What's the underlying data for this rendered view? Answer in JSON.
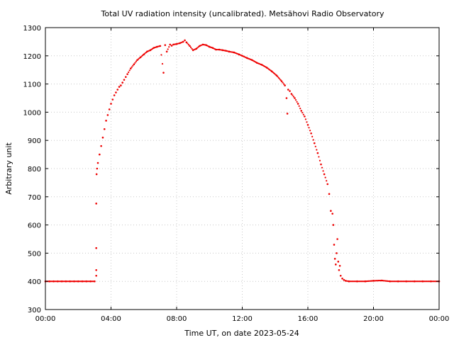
{
  "chart_data": {
    "type": "scatter",
    "title": "Total UV radiation intensity (uncalibrated). Metsähovi Radio Observatory",
    "xlabel": "Time UT, on date 2023-05-24",
    "ylabel": "Arbitrary unit",
    "xlim": [
      0,
      24
    ],
    "ylim": [
      300,
      1300
    ],
    "x_ticks": [
      {
        "value": 0,
        "label": "00:00"
      },
      {
        "value": 4,
        "label": "04:00"
      },
      {
        "value": 8,
        "label": "08:00"
      },
      {
        "value": 12,
        "label": "12:00"
      },
      {
        "value": 16,
        "label": "16:00"
      },
      {
        "value": 20,
        "label": "20:00"
      },
      {
        "value": 24,
        "label": "00:00"
      }
    ],
    "y_ticks": [
      300,
      400,
      500,
      600,
      700,
      800,
      900,
      1000,
      1100,
      1200,
      1300
    ],
    "grid": true,
    "marker_color": "#ee0000",
    "series": [
      {
        "x": [
          0.0,
          0.25,
          0.5,
          0.75,
          1.0,
          1.25,
          1.5,
          1.75,
          2.0,
          2.25,
          2.5,
          2.75,
          3.0,
          3.1,
          3.1,
          3.1,
          3.1,
          3.12,
          3.15,
          3.2,
          3.3,
          3.4,
          3.5,
          3.6,
          3.7,
          3.8,
          3.9,
          4.0,
          4.1,
          4.2,
          4.3,
          4.4,
          4.5,
          4.6,
          4.7,
          4.8,
          4.9,
          5.0,
          5.2,
          5.4,
          5.6,
          5.8,
          6.0,
          6.2,
          6.4,
          6.6,
          6.8,
          7.0,
          7.2,
          7.3,
          7.4,
          7.6,
          7.7,
          7.8,
          8.0,
          8.2,
          8.4,
          8.5,
          8.6,
          8.8,
          9.0,
          9.2,
          9.4,
          9.6,
          9.8,
          10.0,
          10.2,
          10.4,
          10.6,
          10.8,
          11.0,
          11.2,
          11.5,
          11.8,
          12.0,
          12.3,
          12.6,
          12.9,
          13.2,
          13.5,
          13.8,
          14.1,
          14.4,
          14.6,
          14.7,
          14.75,
          14.8,
          14.9,
          15.0,
          15.2,
          15.4,
          15.6,
          15.8,
          16.0,
          16.2,
          16.4,
          16.6,
          16.8,
          17.0,
          17.2,
          17.3,
          17.4,
          17.5,
          17.55,
          17.6,
          17.65,
          17.7,
          17.75,
          17.8,
          17.85,
          17.9,
          17.95,
          18.0,
          18.1,
          18.2,
          18.3,
          18.5,
          19.0,
          19.5,
          20.0,
          20.5,
          21.0,
          21.5,
          22.0,
          22.5,
          23.0,
          23.5,
          24.0
        ],
        "y": [
          400,
          400,
          400,
          400,
          400,
          400,
          400,
          400,
          400,
          400,
          400,
          400,
          400,
          420,
          440,
          518,
          676,
          780,
          800,
          820,
          850,
          880,
          910,
          940,
          970,
          990,
          1010,
          1030,
          1045,
          1060,
          1070,
          1080,
          1090,
          1095,
          1105,
          1115,
          1125,
          1135,
          1155,
          1170,
          1185,
          1195,
          1205,
          1215,
          1220,
          1228,
          1232,
          1235,
          1140,
          1238,
          1215,
          1240,
          1236,
          1240,
          1242,
          1245,
          1250,
          1255,
          1248,
          1235,
          1220,
          1225,
          1235,
          1240,
          1238,
          1232,
          1228,
          1222,
          1222,
          1220,
          1218,
          1215,
          1212,
          1205,
          1200,
          1192,
          1185,
          1175,
          1168,
          1158,
          1145,
          1130,
          1110,
          1095,
          1050,
          995,
          1080,
          1075,
          1065,
          1050,
          1030,
          1005,
          985,
          955,
          925,
          890,
          855,
          815,
          780,
          745,
          710,
          650,
          640,
          600,
          530,
          480,
          460,
          500,
          550,
          470,
          440,
          455,
          420,
          410,
          405,
          402,
          400,
          400,
          400,
          402,
          403,
          400,
          400,
          400,
          400,
          400,
          400,
          400
        ]
      }
    ]
  }
}
